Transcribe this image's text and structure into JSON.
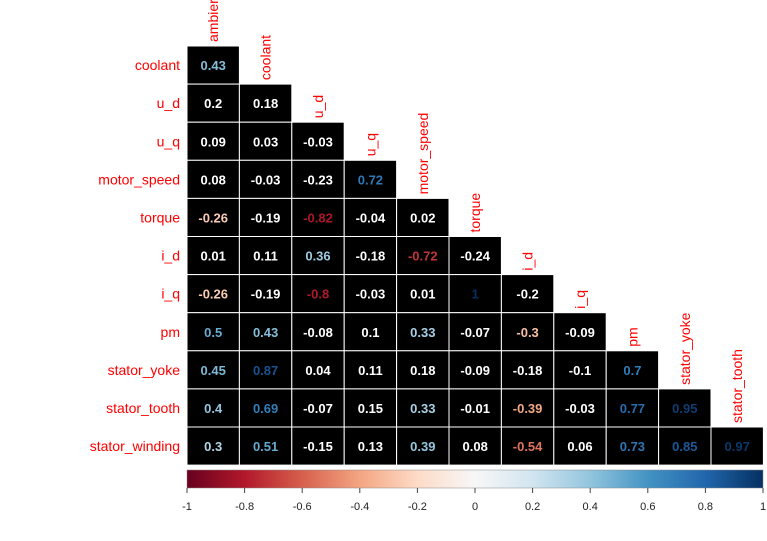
{
  "chart_data": {
    "type": "heatmap",
    "title": "",
    "variables": [
      "ambient",
      "coolant",
      "u_d",
      "u_q",
      "motor_speed",
      "torque",
      "i_d",
      "i_q",
      "pm",
      "stator_yoke",
      "stator_tooth",
      "stator_winding"
    ],
    "row_labels": [
      "coolant",
      "u_d",
      "u_q",
      "motor_speed",
      "torque",
      "i_d",
      "i_q",
      "pm",
      "stator_yoke",
      "stator_tooth",
      "stator_winding"
    ],
    "column_labels": [
      "ambient",
      "coolant",
      "u_d",
      "u_q",
      "motor_speed",
      "torque",
      "i_d",
      "i_q",
      "pm",
      "stator_yoke",
      "stator_tooth"
    ],
    "column_labels_display": [
      "ambier",
      "coolant",
      "u_d",
      "u_q",
      "motor_speed",
      "torque",
      "i_d",
      "i_q",
      "pm",
      "stator_yoke",
      "stator_tooth"
    ],
    "values": [
      [
        0.43
      ],
      [
        0.2,
        0.18
      ],
      [
        0.09,
        0.03,
        -0.03
      ],
      [
        0.08,
        -0.03,
        -0.23,
        0.72
      ],
      [
        -0.26,
        -0.19,
        -0.82,
        -0.04,
        0.02
      ],
      [
        0.01,
        0.11,
        0.36,
        -0.18,
        -0.72,
        -0.24
      ],
      [
        -0.26,
        -0.19,
        -0.8,
        -0.03,
        0.01,
        1,
        -0.2
      ],
      [
        0.5,
        0.43,
        -0.08,
        0.1,
        0.33,
        -0.07,
        -0.3,
        -0.09
      ],
      [
        0.45,
        0.87,
        0.04,
        0.11,
        0.18,
        -0.09,
        -0.18,
        -0.1,
        0.7
      ],
      [
        0.4,
        0.69,
        -0.07,
        0.15,
        0.33,
        -0.01,
        -0.39,
        -0.03,
        0.77,
        0.95
      ],
      [
        0.3,
        0.51,
        -0.15,
        0.13,
        0.39,
        0.08,
        -0.54,
        0.06,
        0.73,
        0.85,
        0.97
      ]
    ],
    "value_labels": [
      [
        "0.43"
      ],
      [
        "0.2",
        "0.18"
      ],
      [
        "0.09",
        "0.03",
        "-0.03"
      ],
      [
        "0.08",
        "-0.03",
        "-0.23",
        "0.72"
      ],
      [
        "-0.26",
        "-0.19",
        "-0.82",
        "-0.04",
        "0.02"
      ],
      [
        "0.01",
        "0.11",
        "0.36",
        "-0.18",
        "-0.72",
        "-0.24"
      ],
      [
        "-0.26",
        "-0.19",
        "-0.8",
        "-0.03",
        "0.01",
        "1",
        "-0.2"
      ],
      [
        "0.5",
        "0.43",
        "-0.08",
        "0.1",
        "0.33",
        "-0.07",
        "-0.3",
        "-0.09"
      ],
      [
        "0.45",
        "0.87",
        "0.04",
        "0.11",
        "0.18",
        "-0.09",
        "-0.18",
        "-0.1",
        "0.7"
      ],
      [
        "0.4",
        "0.69",
        "-0.07",
        "0.15",
        "0.33",
        "-0.01",
        "-0.39",
        "-0.03",
        "0.77",
        "0.95"
      ],
      [
        "0.3",
        "0.51",
        "-0.15",
        "0.13",
        "0.39",
        "0.08",
        "-0.54",
        "0.06",
        "0.73",
        "0.85",
        "0.97"
      ]
    ],
    "colorbar": {
      "range": [
        -1,
        1
      ],
      "ticks": [
        "-1",
        "-0.8",
        "-0.6",
        "-0.4",
        "-0.2",
        "0",
        "0.2",
        "0.4",
        "0.6",
        "0.8",
        "1"
      ]
    },
    "colors": {
      "cell_background": "#000000",
      "label_color": "#ff0000",
      "negative_end": "#67001f",
      "mid": "#f7f7f7",
      "positive_end": "#053061",
      "grid": "#ffffff"
    }
  }
}
